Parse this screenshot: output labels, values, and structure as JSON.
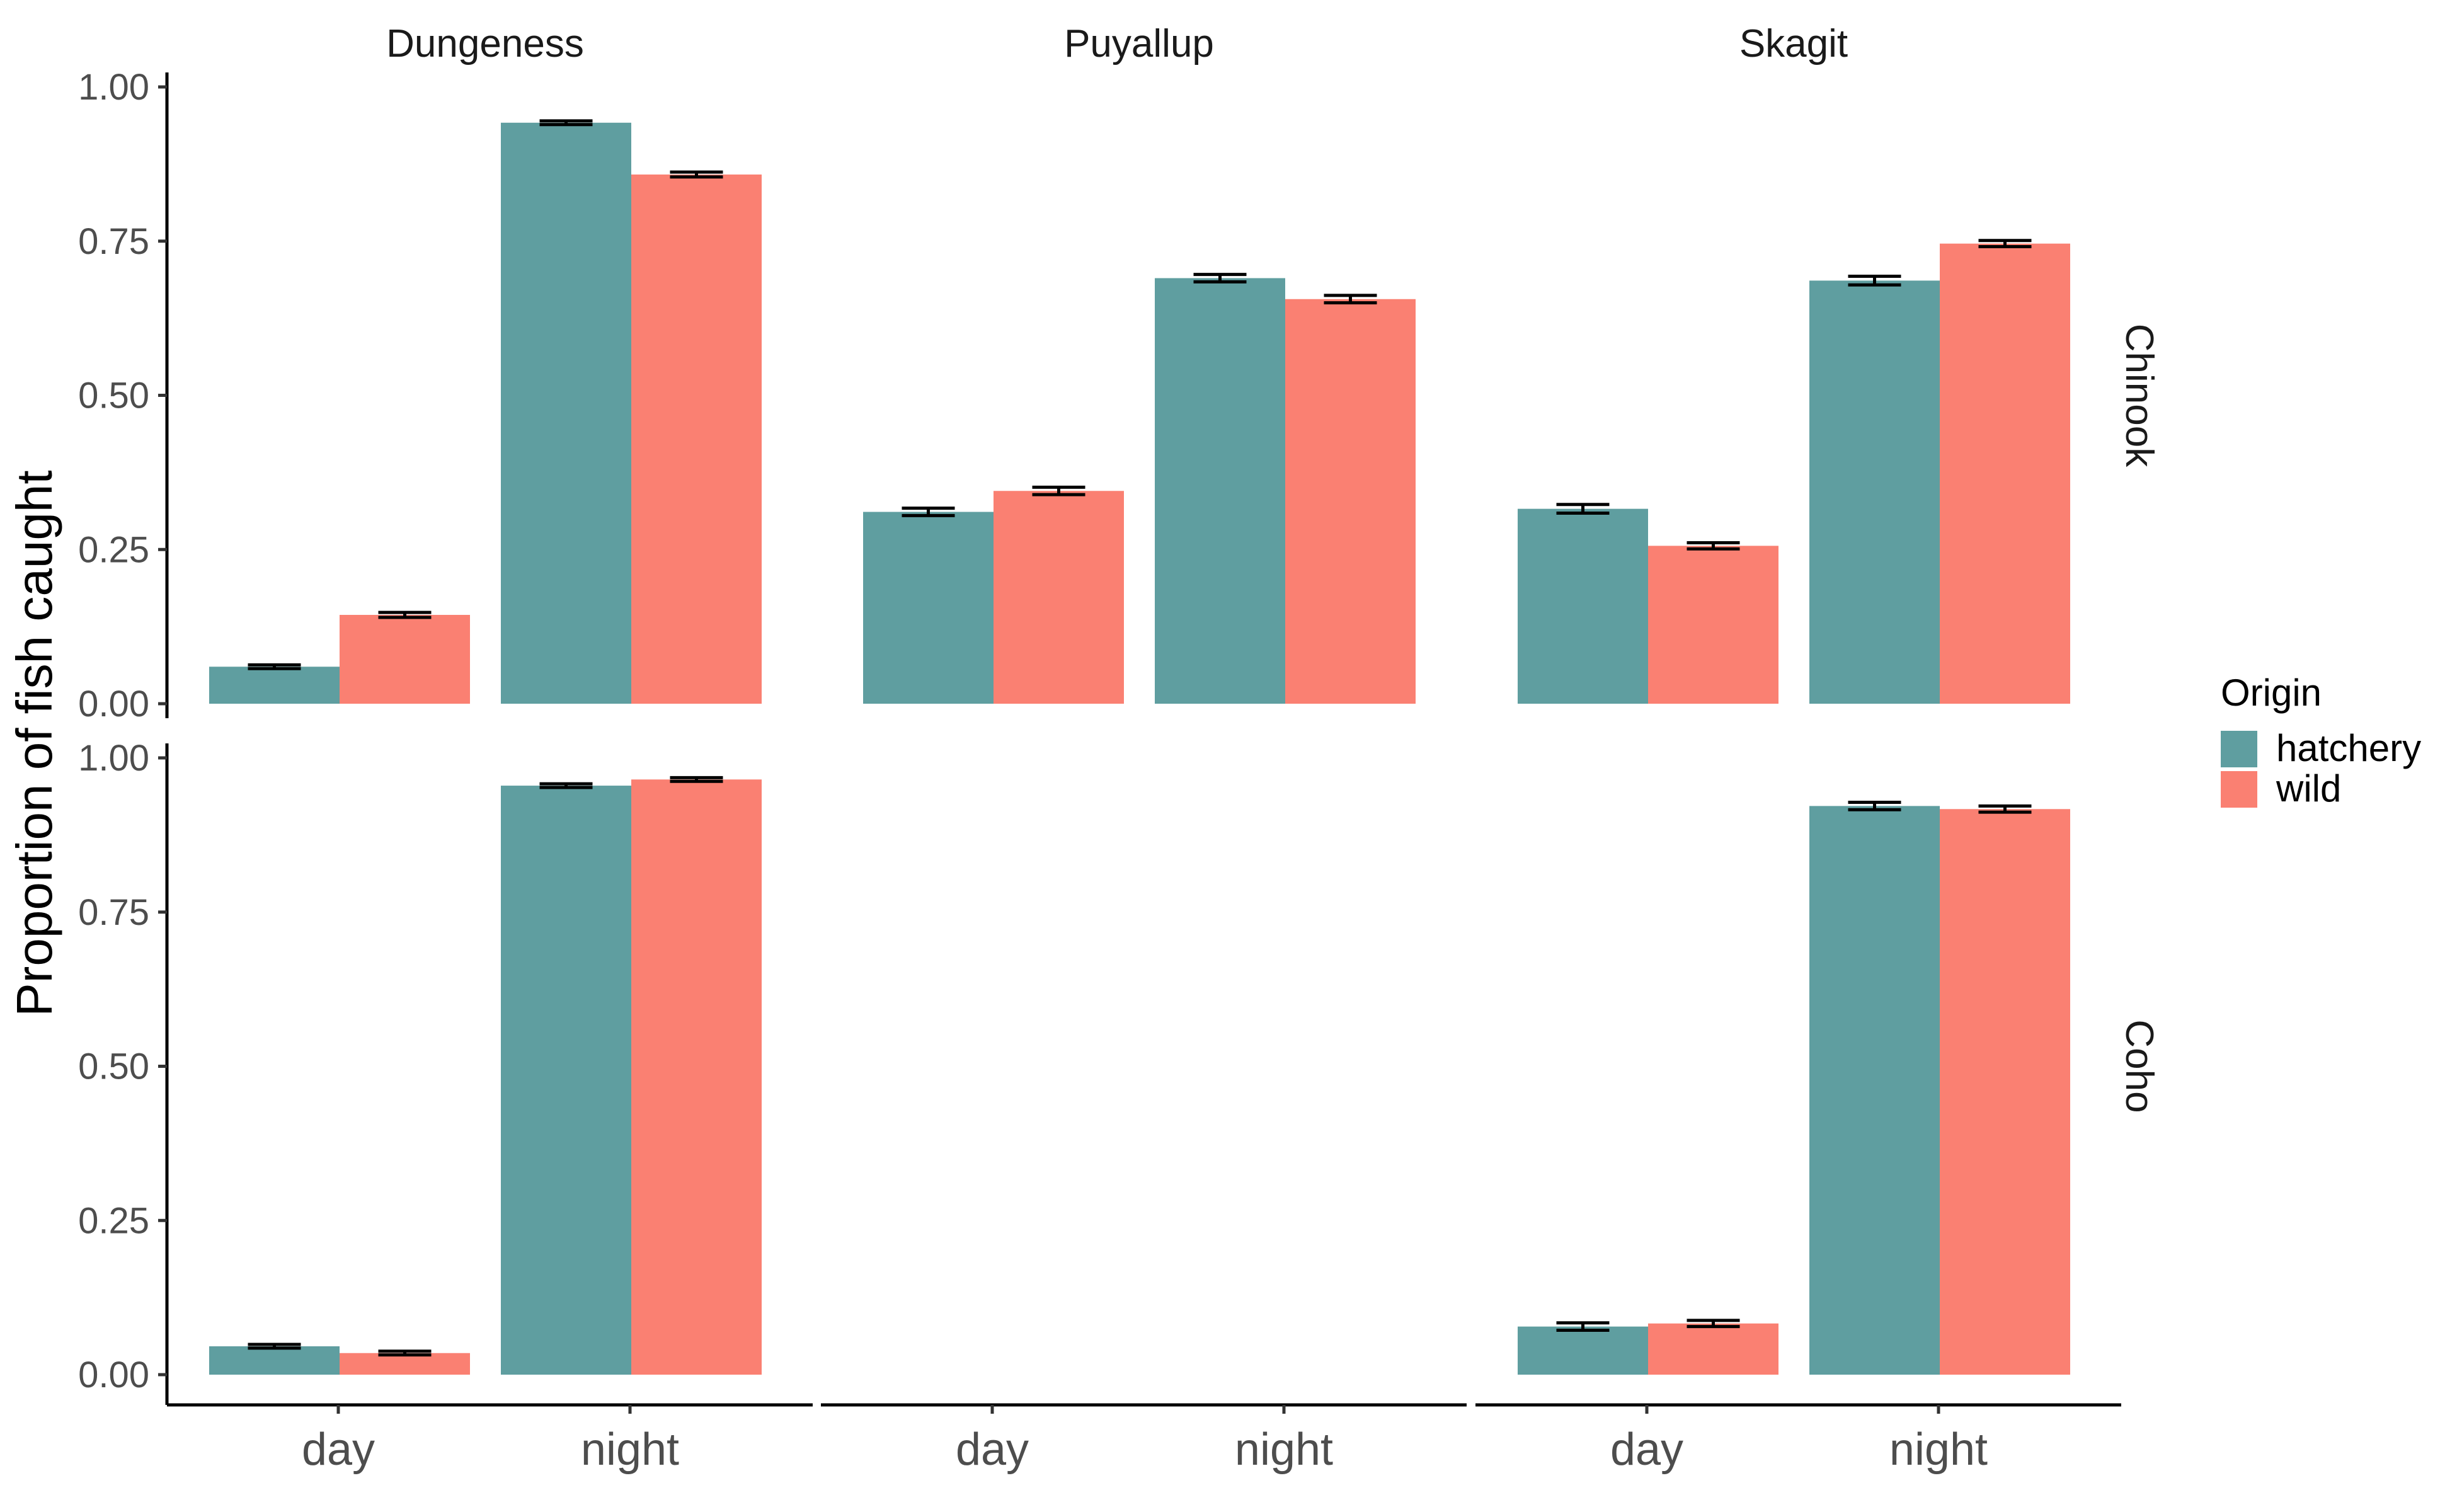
{
  "chart_data": {
    "type": "bar",
    "ylabel": "Proportion of fish caught",
    "xlabel": "",
    "ylim": [
      0,
      1
    ],
    "yticks": [
      "0.00",
      "0.25",
      "0.50",
      "0.75",
      "1.00"
    ],
    "categories": [
      "day",
      "night"
    ],
    "columns": [
      "Dungeness",
      "Puyallup",
      "Skagit"
    ],
    "rows": [
      "Chinook",
      "Coho"
    ],
    "legend": {
      "title": "Origin",
      "placement": "right",
      "entries": [
        {
          "name": "hatchery",
          "color": "#5f9ea0"
        },
        {
          "name": "wild",
          "color": "#fa8072"
        }
      ]
    },
    "grid": false,
    "error_bars": true,
    "panels": [
      {
        "row": "Chinook",
        "column": "Dungeness",
        "series": [
          {
            "name": "hatchery",
            "values": [
              0.06,
              0.942
            ],
            "errors": [
              0.003,
              0.003
            ]
          },
          {
            "name": "wild",
            "values": [
              0.144,
              0.858
            ],
            "errors": [
              0.004,
              0.004
            ]
          }
        ]
      },
      {
        "row": "Chinook",
        "column": "Puyallup",
        "series": [
          {
            "name": "hatchery",
            "values": [
              0.311,
              0.69
            ],
            "errors": [
              0.006,
              0.006
            ]
          },
          {
            "name": "wild",
            "values": [
              0.345,
              0.656
            ],
            "errors": [
              0.006,
              0.006
            ]
          }
        ]
      },
      {
        "row": "Chinook",
        "column": "Skagit",
        "series": [
          {
            "name": "hatchery",
            "values": [
              0.316,
              0.686
            ],
            "errors": [
              0.007,
              0.007
            ]
          },
          {
            "name": "wild",
            "values": [
              0.256,
              0.746
            ],
            "errors": [
              0.005,
              0.005
            ]
          }
        ]
      },
      {
        "row": "Coho",
        "column": "Dungeness",
        "series": [
          {
            "name": "hatchery",
            "values": [
              0.046,
              0.955
            ],
            "errors": [
              0.003,
              0.003
            ]
          },
          {
            "name": "wild",
            "values": [
              0.035,
              0.965
            ],
            "errors": [
              0.003,
              0.003
            ]
          }
        ]
      },
      {
        "row": "Coho",
        "column": "Puyallup",
        "series": []
      },
      {
        "row": "Coho",
        "column": "Skagit",
        "series": [
          {
            "name": "hatchery",
            "values": [
              0.078,
              0.922
            ],
            "errors": [
              0.006,
              0.006
            ]
          },
          {
            "name": "wild",
            "values": [
              0.083,
              0.917
            ],
            "errors": [
              0.005,
              0.005
            ]
          }
        ]
      }
    ]
  }
}
